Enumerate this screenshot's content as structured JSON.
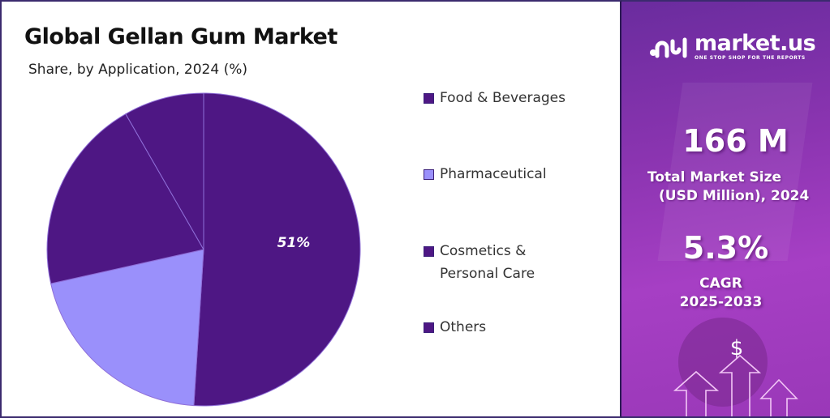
{
  "header": {
    "title": "Global Gellan Gum Market",
    "subtitle": "Share, by Application, 2024 (%)"
  },
  "legend": [
    {
      "label": "Food & Beverages",
      "color": "#4e1784"
    },
    {
      "label": "Pharmaceutical",
      "color": "#9a90fb"
    },
    {
      "label": "Cosmetics &",
      "label2": "Personal Care",
      "color": "#4e1784"
    },
    {
      "label": "Others",
      "color": "#4e1784"
    }
  ],
  "pie_label": "51%",
  "sidebar": {
    "brand": "market.us",
    "tagline": "ONE STOP SHOP FOR THE REPORTS",
    "market_size_value": "166 M",
    "market_size_label_1": "Total Market Size",
    "market_size_label_2": "(USD Million), 2024",
    "cagr_value": "5.3%",
    "cagr_label": "CAGR",
    "cagr_period": "2025-2033",
    "dollar_symbol": "$"
  },
  "chart_data": {
    "type": "pie",
    "title": "Global Gellan Gum Market",
    "subtitle": "Share, by Application, 2024 (%)",
    "categories": [
      "Food & Beverages",
      "Pharmaceutical",
      "Cosmetics & Personal Care",
      "Others"
    ],
    "values": [
      51,
      20.5,
      20.2,
      8.3
    ],
    "labeled_values": {
      "Food & Beverages": "51%"
    },
    "colors": [
      "#4e1784",
      "#9a90fb",
      "#4e1784",
      "#4e1784"
    ],
    "legend_position": "right",
    "start_angle": "12 o'clock, clockwise"
  }
}
